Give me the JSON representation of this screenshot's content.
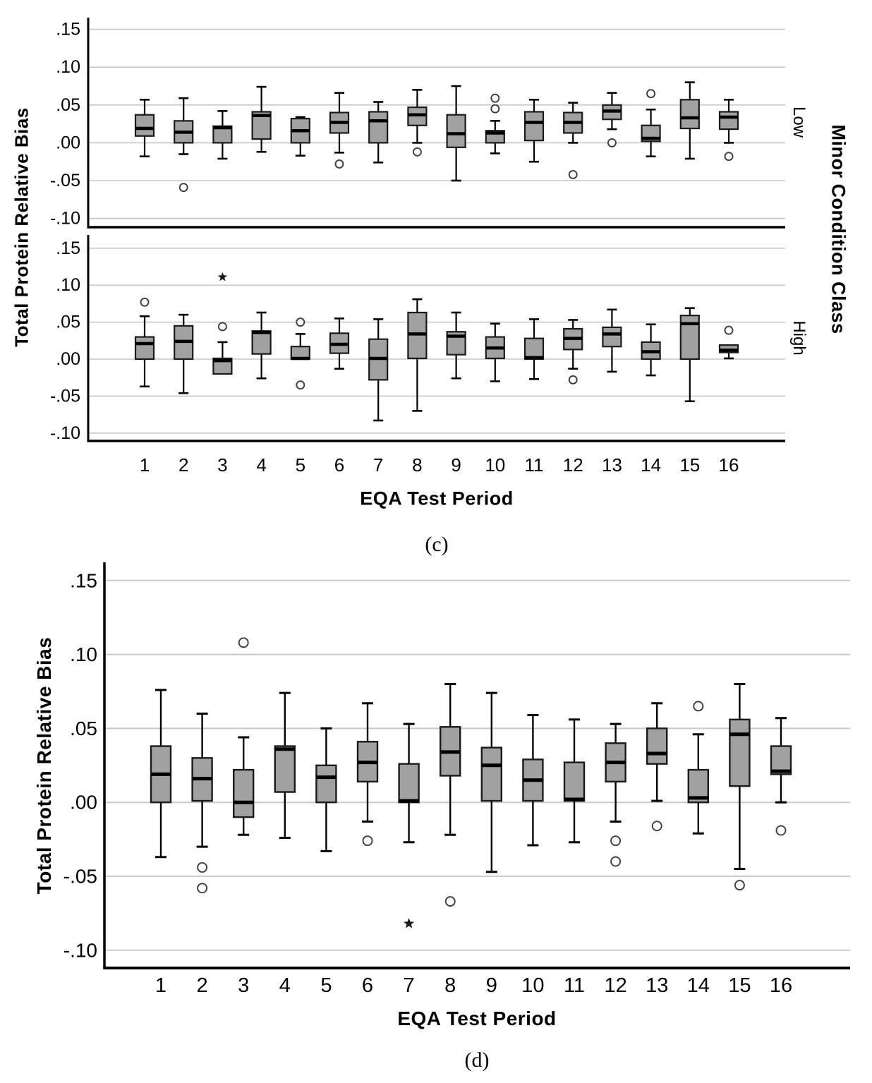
{
  "chart_data": [
    {
      "id": "figure-c",
      "type": "boxplot",
      "caption": "(c)",
      "xlabel": "EQA Test Period",
      "ylabel": "Total Protein Relative Bias",
      "panel_axis_title": "Minor Condition Class",
      "categories": [
        "1",
        "2",
        "3",
        "4",
        "5",
        "6",
        "7",
        "8",
        "9",
        "10",
        "11",
        "12",
        "13",
        "14",
        "15",
        "16"
      ],
      "yticks": {
        "labels": [
          ".15",
          ".10",
          ".05",
          ".00",
          "-.05",
          "-.10"
        ],
        "values": [
          0.15,
          0.1,
          0.05,
          0.0,
          -0.05,
          -0.1
        ]
      },
      "ylim": [
        -0.112,
        0.166
      ],
      "grid": true,
      "legend": null,
      "style": {
        "box_fill": "#a1a1a1",
        "box_stroke": "#1a1a1a",
        "grid_color": "#c9c9c9",
        "outlier_stroke": "#3c3c3c",
        "extreme_color": "#1a1a1a",
        "axis_color": "#000000"
      },
      "panels": [
        {
          "label": "Low",
          "boxes": [
            {
              "whislo": -0.018,
              "q1": 0.009,
              "med": 0.019,
              "q3": 0.037,
              "whishi": 0.057,
              "outliers": [],
              "extremes": []
            },
            {
              "whislo": -0.015,
              "q1": 0.0,
              "med": 0.014,
              "q3": 0.029,
              "whishi": 0.059,
              "outliers": [
                -0.059
              ],
              "extremes": []
            },
            {
              "whislo": -0.021,
              "q1": 0.0,
              "med": 0.02,
              "q3": 0.022,
              "whishi": 0.042,
              "outliers": [],
              "extremes": []
            },
            {
              "whislo": -0.012,
              "q1": 0.005,
              "med": 0.036,
              "q3": 0.041,
              "whishi": 0.074,
              "outliers": [],
              "extremes": []
            },
            {
              "whislo": -0.017,
              "q1": 0.0,
              "med": 0.016,
              "q3": 0.032,
              "whishi": 0.034,
              "outliers": [],
              "extremes": []
            },
            {
              "whislo": -0.013,
              "q1": 0.013,
              "med": 0.027,
              "q3": 0.04,
              "whishi": 0.066,
              "outliers": [
                -0.028
              ],
              "extremes": []
            },
            {
              "whislo": -0.026,
              "q1": 0.0,
              "med": 0.029,
              "q3": 0.041,
              "whishi": 0.054,
              "outliers": [],
              "extremes": []
            },
            {
              "whislo": 0.0,
              "q1": 0.023,
              "med": 0.037,
              "q3": 0.047,
              "whishi": 0.07,
              "outliers": [
                -0.012
              ],
              "extremes": []
            },
            {
              "whislo": -0.05,
              "q1": -0.006,
              "med": 0.012,
              "q3": 0.037,
              "whishi": 0.075,
              "outliers": [],
              "extremes": []
            },
            {
              "whislo": -0.014,
              "q1": 0.0,
              "med": 0.013,
              "q3": 0.016,
              "whishi": 0.029,
              "outliers": [
                0.045,
                0.059
              ],
              "extremes": []
            },
            {
              "whislo": -0.025,
              "q1": 0.003,
              "med": 0.027,
              "q3": 0.041,
              "whishi": 0.057,
              "outliers": [],
              "extremes": []
            },
            {
              "whislo": 0.0,
              "q1": 0.013,
              "med": 0.027,
              "q3": 0.04,
              "whishi": 0.053,
              "outliers": [
                -0.042
              ],
              "extremes": []
            },
            {
              "whislo": 0.018,
              "q1": 0.031,
              "med": 0.042,
              "q3": 0.05,
              "whishi": 0.066,
              "outliers": [
                0.0
              ],
              "extremes": []
            },
            {
              "whislo": -0.018,
              "q1": 0.002,
              "med": 0.006,
              "q3": 0.023,
              "whishi": 0.044,
              "outliers": [
                0.065
              ],
              "extremes": []
            },
            {
              "whislo": -0.021,
              "q1": 0.019,
              "med": 0.033,
              "q3": 0.057,
              "whishi": 0.08,
              "outliers": [],
              "extremes": []
            },
            {
              "whislo": 0.0,
              "q1": 0.018,
              "med": 0.034,
              "q3": 0.041,
              "whishi": 0.057,
              "outliers": [
                -0.018
              ],
              "extremes": []
            }
          ]
        },
        {
          "label": "High",
          "boxes": [
            {
              "whislo": -0.037,
              "q1": 0.0,
              "med": 0.021,
              "q3": 0.03,
              "whishi": 0.058,
              "outliers": [
                0.077
              ],
              "extremes": []
            },
            {
              "whislo": -0.046,
              "q1": 0.0,
              "med": 0.024,
              "q3": 0.045,
              "whishi": 0.06,
              "outliers": [],
              "extremes": []
            },
            {
              "whislo": -0.02,
              "q1": -0.02,
              "med": -0.002,
              "q3": 0.001,
              "whishi": 0.023,
              "outliers": [
                0.044
              ],
              "extremes": [
                0.111
              ]
            },
            {
              "whislo": -0.026,
              "q1": 0.007,
              "med": 0.036,
              "q3": 0.038,
              "whishi": 0.063,
              "outliers": [],
              "extremes": []
            },
            {
              "whislo": 0.0,
              "q1": 0.0,
              "med": 0.001,
              "q3": 0.017,
              "whishi": 0.034,
              "outliers": [
                0.05,
                -0.035
              ],
              "extremes": []
            },
            {
              "whislo": -0.013,
              "q1": 0.008,
              "med": 0.02,
              "q3": 0.035,
              "whishi": 0.055,
              "outliers": [],
              "extremes": []
            },
            {
              "whislo": -0.083,
              "q1": -0.028,
              "med": 0.001,
              "q3": 0.027,
              "whishi": 0.054,
              "outliers": [],
              "extremes": []
            },
            {
              "whislo": -0.07,
              "q1": 0.001,
              "med": 0.034,
              "q3": 0.063,
              "whishi": 0.081,
              "outliers": [],
              "extremes": []
            },
            {
              "whislo": -0.026,
              "q1": 0.006,
              "med": 0.031,
              "q3": 0.037,
              "whishi": 0.063,
              "outliers": [],
              "extremes": []
            },
            {
              "whislo": -0.03,
              "q1": 0.001,
              "med": 0.015,
              "q3": 0.03,
              "whishi": 0.048,
              "outliers": [],
              "extremes": []
            },
            {
              "whislo": -0.027,
              "q1": 0.0,
              "med": 0.002,
              "q3": 0.028,
              "whishi": 0.054,
              "outliers": [],
              "extremes": []
            },
            {
              "whislo": -0.013,
              "q1": 0.013,
              "med": 0.028,
              "q3": 0.041,
              "whishi": 0.053,
              "outliers": [
                -0.028
              ],
              "extremes": []
            },
            {
              "whislo": -0.017,
              "q1": 0.017,
              "med": 0.034,
              "q3": 0.043,
              "whishi": 0.067,
              "outliers": [],
              "extremes": []
            },
            {
              "whislo": -0.022,
              "q1": 0.0,
              "med": 0.01,
              "q3": 0.023,
              "whishi": 0.047,
              "outliers": [],
              "extremes": []
            },
            {
              "whislo": -0.057,
              "q1": 0.0,
              "med": 0.048,
              "q3": 0.059,
              "whishi": 0.069,
              "outliers": [],
              "extremes": []
            },
            {
              "whislo": 0.001,
              "q1": 0.009,
              "med": 0.012,
              "q3": 0.019,
              "whishi": 0.019,
              "outliers": [
                0.039
              ],
              "extremes": []
            }
          ]
        }
      ]
    },
    {
      "id": "figure-d",
      "type": "boxplot",
      "caption": "(d)",
      "xlabel": "EQA Test Period",
      "ylabel": "Total Protein Relative Bias",
      "panel_axis_title": "",
      "categories": [
        "1",
        "2",
        "3",
        "4",
        "5",
        "6",
        "7",
        "8",
        "9",
        "10",
        "11",
        "12",
        "13",
        "14",
        "15",
        "16"
      ],
      "yticks": {
        "labels": [
          ".15",
          ".10",
          ".05",
          ".00",
          "-.05",
          "-.10"
        ],
        "values": [
          0.15,
          0.1,
          0.05,
          0.0,
          -0.05,
          -0.1
        ]
      },
      "ylim": [
        -0.112,
        0.162
      ],
      "grid": true,
      "legend": null,
      "style": {
        "box_fill": "#a1a1a1",
        "box_stroke": "#1a1a1a",
        "grid_color": "#c9c9c9",
        "outlier_stroke": "#3c3c3c",
        "extreme_color": "#1a1a1a",
        "axis_color": "#000000"
      },
      "panels": [
        {
          "label": "",
          "boxes": [
            {
              "whislo": -0.037,
              "q1": 0.0,
              "med": 0.019,
              "q3": 0.038,
              "whishi": 0.076,
              "outliers": [],
              "extremes": []
            },
            {
              "whislo": -0.03,
              "q1": 0.001,
              "med": 0.016,
              "q3": 0.03,
              "whishi": 0.06,
              "outliers": [
                -0.044,
                -0.058
              ],
              "extremes": []
            },
            {
              "whislo": -0.022,
              "q1": -0.01,
              "med": 0.0,
              "q3": 0.022,
              "whishi": 0.044,
              "outliers": [
                0.108
              ],
              "extremes": []
            },
            {
              "whislo": -0.024,
              "q1": 0.007,
              "med": 0.036,
              "q3": 0.038,
              "whishi": 0.074,
              "outliers": [],
              "extremes": []
            },
            {
              "whislo": -0.033,
              "q1": 0.0,
              "med": 0.017,
              "q3": 0.025,
              "whishi": 0.05,
              "outliers": [],
              "extremes": []
            },
            {
              "whislo": -0.013,
              "q1": 0.014,
              "med": 0.027,
              "q3": 0.041,
              "whishi": 0.067,
              "outliers": [
                -0.026
              ],
              "extremes": []
            },
            {
              "whislo": -0.027,
              "q1": 0.0,
              "med": 0.001,
              "q3": 0.026,
              "whishi": 0.053,
              "outliers": [],
              "extremes": [
                -0.082
              ]
            },
            {
              "whislo": -0.022,
              "q1": 0.018,
              "med": 0.034,
              "q3": 0.051,
              "whishi": 0.08,
              "outliers": [
                -0.067
              ],
              "extremes": []
            },
            {
              "whislo": -0.047,
              "q1": 0.001,
              "med": 0.025,
              "q3": 0.037,
              "whishi": 0.074,
              "outliers": [],
              "extremes": []
            },
            {
              "whislo": -0.029,
              "q1": 0.001,
              "med": 0.015,
              "q3": 0.029,
              "whishi": 0.059,
              "outliers": [],
              "extremes": []
            },
            {
              "whislo": -0.027,
              "q1": 0.001,
              "med": 0.002,
              "q3": 0.027,
              "whishi": 0.056,
              "outliers": [],
              "extremes": []
            },
            {
              "whislo": -0.013,
              "q1": 0.014,
              "med": 0.027,
              "q3": 0.04,
              "whishi": 0.053,
              "outliers": [
                -0.026,
                -0.04
              ],
              "extremes": []
            },
            {
              "whislo": 0.001,
              "q1": 0.026,
              "med": 0.033,
              "q3": 0.05,
              "whishi": 0.067,
              "outliers": [
                -0.016
              ],
              "extremes": []
            },
            {
              "whislo": -0.021,
              "q1": 0.0,
              "med": 0.003,
              "q3": 0.022,
              "whishi": 0.046,
              "outliers": [
                0.065
              ],
              "extremes": []
            },
            {
              "whislo": -0.045,
              "q1": 0.011,
              "med": 0.046,
              "q3": 0.056,
              "whishi": 0.08,
              "outliers": [
                -0.056
              ],
              "extremes": []
            },
            {
              "whislo": 0.0,
              "q1": 0.019,
              "med": 0.021,
              "q3": 0.038,
              "whishi": 0.057,
              "outliers": [
                -0.019
              ],
              "extremes": []
            }
          ]
        }
      ]
    }
  ]
}
